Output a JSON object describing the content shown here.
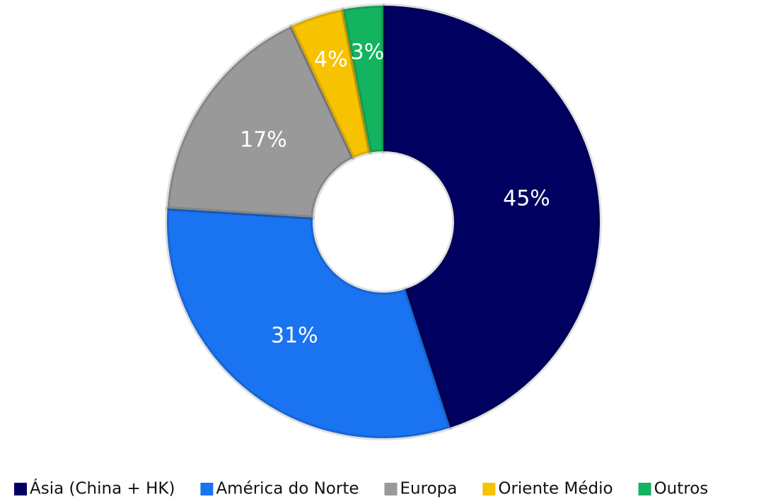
{
  "chart_data": {
    "type": "donut",
    "categories": [
      "Ásia (China + HK)",
      "América do Norte",
      "Europa",
      "Oriente Médio",
      "Outros"
    ],
    "values": [
      45,
      31,
      17,
      4,
      3
    ],
    "value_labels": [
      "45%",
      "31%",
      "17%",
      "4%",
      "3%"
    ],
    "colors": [
      "#000061",
      "#1a73f0",
      "#999999",
      "#f7c200",
      "#14b360"
    ],
    "legend": "bottom"
  }
}
